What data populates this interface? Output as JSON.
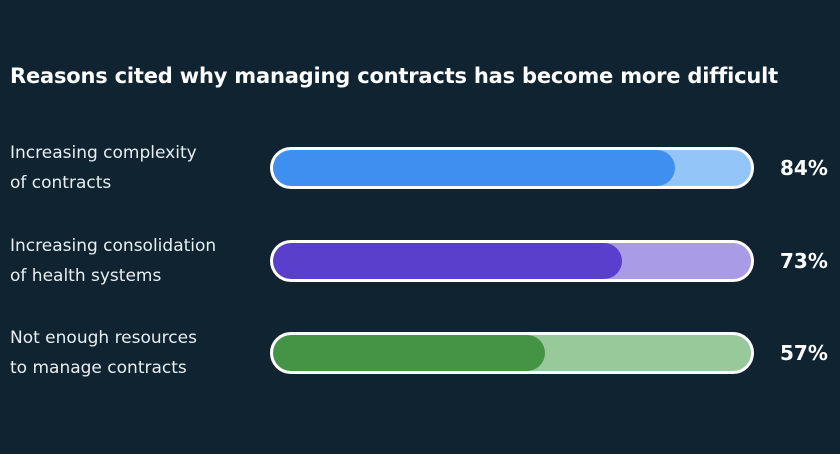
{
  "chart_data": {
    "type": "bar",
    "orientation": "horizontal",
    "title": "Reasons cited why managing contracts has become more difficult",
    "categories": [
      "Increasing complexity\nof contracts",
      "Increasing consolidation\nof health systems",
      "Not enough resources\nto manage contracts"
    ],
    "values": [
      84,
      73,
      57
    ],
    "value_labels": [
      "84%",
      "73%",
      "57%"
    ],
    "colors": [
      "#3f8ff1",
      "#5a3fcd",
      "#459345"
    ],
    "track_colors": [
      "#93c5f8",
      "#a99be5",
      "#98c99a"
    ],
    "xlim": [
      0,
      100
    ],
    "background": "#0f2430"
  }
}
